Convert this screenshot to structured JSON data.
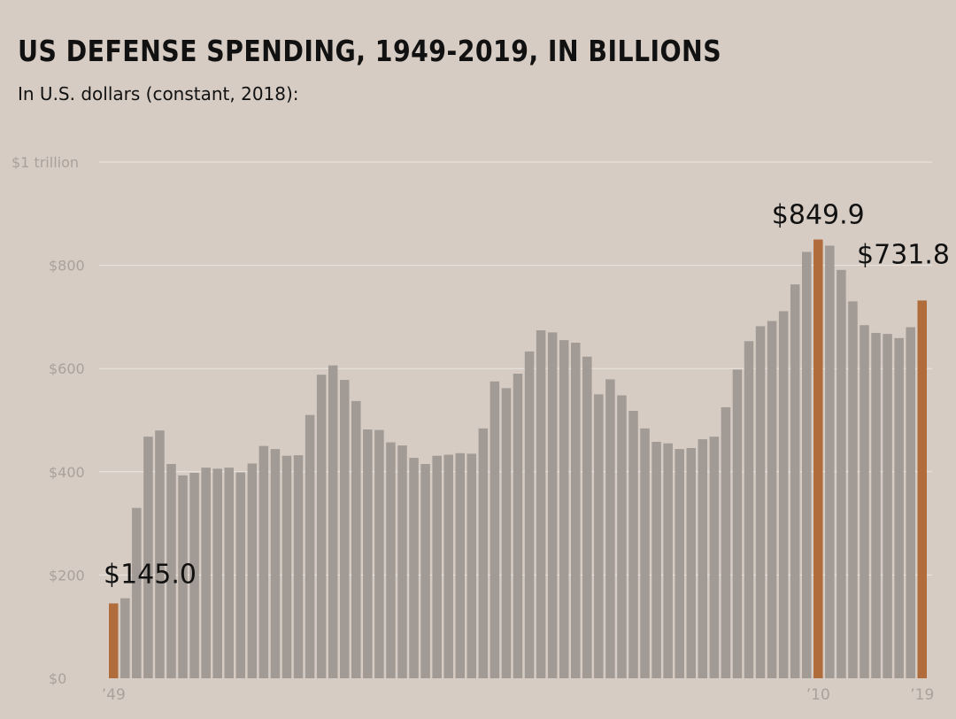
{
  "title": "US DEFENSE SPENDING, 1949-2019, IN BILLIONS",
  "subtitle": "In U.S. dollars (constant, 2018):",
  "colors": {
    "background": "#d6ccc4",
    "bar": "#a29a95",
    "highlight": "#b06c3a",
    "grid": "#ece6e1",
    "tick_text": "#a9a19b",
    "label_text": "#111111"
  },
  "chart_data": {
    "type": "bar",
    "title": "US DEFENSE SPENDING, 1949-2019, IN BILLIONS",
    "subtitle": "In U.S. dollars (constant, 2018):",
    "xlabel": "",
    "ylabel": "",
    "ylim": [
      0,
      1000
    ],
    "grid": true,
    "yticks": [
      {
        "value": 0,
        "label": "$0"
      },
      {
        "value": 200,
        "label": "$200"
      },
      {
        "value": 400,
        "label": "$400"
      },
      {
        "value": 600,
        "label": "$600"
      },
      {
        "value": 800,
        "label": "$800"
      },
      {
        "value": 1000,
        "label": "$1 trillion"
      }
    ],
    "xticks": [
      {
        "year": 1949,
        "label": "’49"
      },
      {
        "year": 2010,
        "label": "’10"
      },
      {
        "year": 2019,
        "label": "’19"
      }
    ],
    "categories": [
      1949,
      1950,
      1951,
      1952,
      1953,
      1954,
      1955,
      1956,
      1957,
      1958,
      1959,
      1960,
      1961,
      1962,
      1963,
      1964,
      1965,
      1966,
      1967,
      1968,
      1969,
      1970,
      1971,
      1972,
      1973,
      1974,
      1975,
      1976,
      1977,
      1978,
      1979,
      1980,
      1981,
      1982,
      1983,
      1984,
      1985,
      1986,
      1987,
      1988,
      1989,
      1990,
      1991,
      1992,
      1993,
      1994,
      1995,
      1996,
      1997,
      1998,
      1999,
      2000,
      2001,
      2002,
      2003,
      2004,
      2005,
      2006,
      2007,
      2008,
      2009,
      2010,
      2011,
      2012,
      2013,
      2014,
      2015,
      2016,
      2017,
      2018,
      2019
    ],
    "values": [
      145.0,
      155,
      330,
      468,
      480,
      415,
      393,
      398,
      408,
      406,
      408,
      399,
      416,
      450,
      444,
      431,
      432,
      510,
      588,
      606,
      578,
      537,
      482,
      481,
      457,
      451,
      427,
      415,
      431,
      433,
      436,
      435,
      484,
      575,
      562,
      590,
      633,
      674,
      670,
      655,
      650,
      623,
      550,
      579,
      548,
      518,
      484,
      458,
      455,
      444,
      446,
      463,
      468,
      525,
      598,
      653,
      682,
      692,
      711,
      763,
      826,
      849.9,
      838,
      791,
      730,
      684,
      669,
      667,
      659,
      680,
      731.8
    ],
    "highlights": [
      1949,
      2010,
      2019
    ],
    "annotations": [
      {
        "year": 1949,
        "text": "$145.0"
      },
      {
        "year": 2010,
        "text": "$849.9"
      },
      {
        "year": 2019,
        "text": "$731.8"
      }
    ]
  }
}
